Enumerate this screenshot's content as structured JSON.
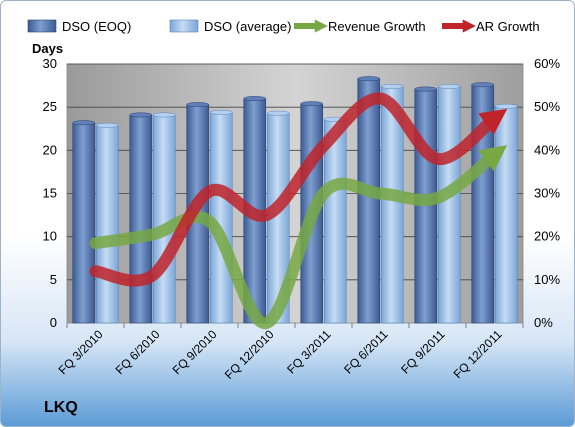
{
  "company": "LKQ",
  "chart_data": {
    "type": "bar",
    "categories": [
      "FQ 3/2010",
      "FQ 6/2010",
      "FQ 9/2010",
      "FQ 12/2010",
      "FQ 3/2011",
      "FQ 6/2011",
      "FQ 9/2011",
      "FQ 12/2011"
    ],
    "ylabel": "Days",
    "ylim": [
      0,
      30
    ],
    "yticks": [
      0,
      5,
      10,
      15,
      20,
      25,
      30
    ],
    "y2lim": [
      0,
      0.6
    ],
    "y2ticks": [
      "0%",
      "10%",
      "20%",
      "30%",
      "40%",
      "50%",
      "60%"
    ],
    "grid": true,
    "legend_position": "top",
    "series": [
      {
        "name": "DSO (EOQ)",
        "kind": "bar",
        "color": "#4f6fa8",
        "values": [
          23.2,
          24.1,
          25.3,
          26.0,
          25.4,
          28.3,
          27.1,
          27.6
        ]
      },
      {
        "name": "DSO (average)",
        "kind": "bar",
        "color": "#9fc1e6",
        "values": [
          22.9,
          24.1,
          24.4,
          24.3,
          23.6,
          27.4,
          27.4,
          25.1
        ]
      },
      {
        "name": "Revenue Growth",
        "kind": "line",
        "axis": "right",
        "color": "#77a843",
        "values": [
          0.185,
          0.205,
          0.235,
          0.0,
          0.3,
          0.3,
          0.29,
          0.39
        ]
      },
      {
        "name": "AR Growth",
        "kind": "line",
        "axis": "right",
        "color": "#c0232a",
        "values": [
          0.12,
          0.11,
          0.305,
          0.25,
          0.41,
          0.52,
          0.38,
          0.475
        ]
      }
    ]
  }
}
